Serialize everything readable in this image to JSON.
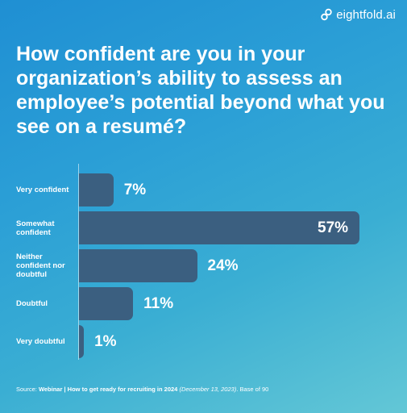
{
  "brand": {
    "logo_text": "eightfold.ai"
  },
  "title": "How confident are you in your organization’s ability to assess an employee’s potential beyond what you see on a resumé?",
  "chart_data": {
    "type": "bar",
    "orientation": "horizontal",
    "title": "How confident are you in your organization’s ability to assess an employee’s potential beyond what you see on a resumé?",
    "categories": [
      "Very confident",
      "Somewhat confident",
      "Neither confident nor doubtful",
      "Doubtful",
      "Very doubtful"
    ],
    "values": [
      7,
      57,
      24,
      11,
      1
    ],
    "value_labels": [
      "7%",
      "57%",
      "24%",
      "11%",
      "1%"
    ],
    "unit": "%",
    "xlim": [
      0,
      57
    ],
    "grid": false,
    "legend": "none",
    "bar_color": "#3b5f80"
  },
  "source": {
    "prefix": "Source: ",
    "event": "Webinar | How to get ready for recruiting in 2024",
    "date": "(December 13, 2023)",
    "suffix": ". Base of 90"
  }
}
